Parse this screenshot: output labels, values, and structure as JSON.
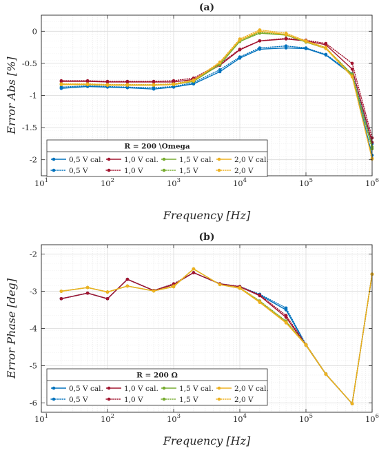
{
  "chart_data": [
    {
      "type": "line",
      "title": "(a)",
      "xlabel": "Frequency [Hz]",
      "ylabel": "Error Abs [%]",
      "xscale": "log",
      "xlim": [
        10,
        1000000
      ],
      "ylim": [
        -2.25,
        0.25
      ],
      "x_ticks": [
        10,
        100,
        1000,
        10000,
        100000,
        1000000
      ],
      "x_tick_labels": [
        [
          "10",
          "1"
        ],
        [
          "10",
          "2"
        ],
        [
          "10",
          "3"
        ],
        [
          "10",
          "4"
        ],
        [
          "10",
          "5"
        ],
        [
          "10",
          "6"
        ]
      ],
      "y_ticks": [
        0,
        -0.5,
        -1,
        -1.5,
        -2
      ],
      "y_tick_labels": [
        "0",
        "-0.5",
        "-1",
        "-1.5",
        "-2"
      ],
      "grid": true,
      "legend": {
        "title": "R = 200 \\Omega",
        "placement": "bottom-left",
        "columns": 4
      },
      "x": [
        20,
        50,
        100,
        200,
        500,
        1000,
        2000,
        5000,
        10000,
        20000,
        50000,
        100000,
        200000,
        500000,
        1000000
      ],
      "series": [
        {
          "name": "0,5 V cal.",
          "color": "#0072BD",
          "style": "solid",
          "values": [
            -0.89,
            -0.86,
            -0.87,
            -0.88,
            -0.9,
            -0.87,
            -0.82,
            -0.63,
            -0.42,
            -0.28,
            -0.26,
            -0.27,
            -0.37,
            -0.68,
            -1.93
          ]
        },
        {
          "name": "1,0 V cal.",
          "color": "#A2142F",
          "style": "solid",
          "values": [
            -0.78,
            -0.78,
            -0.79,
            -0.79,
            -0.79,
            -0.79,
            -0.75,
            -0.53,
            -0.29,
            -0.15,
            -0.12,
            -0.15,
            -0.21,
            -0.59,
            -1.73
          ]
        },
        {
          "name": "1,5 V cal.",
          "color": "#77AC30",
          "style": "solid",
          "values": [
            -0.83,
            -0.83,
            -0.84,
            -0.84,
            -0.84,
            -0.83,
            -0.78,
            -0.52,
            -0.16,
            -0.03,
            -0.06,
            -0.17,
            -0.27,
            -0.68,
            -1.8
          ]
        },
        {
          "name": "2,0 V cal.",
          "color": "#EDB120",
          "style": "solid",
          "values": [
            -0.83,
            -0.83,
            -0.84,
            -0.84,
            -0.84,
            -0.83,
            -0.77,
            -0.49,
            -0.14,
            0.0,
            -0.05,
            -0.16,
            -0.27,
            -0.71,
            -1.98
          ]
        },
        {
          "name": "0,5 V",
          "color": "#0072BD",
          "style": "dotted",
          "values": [
            -0.87,
            -0.85,
            -0.86,
            -0.87,
            -0.88,
            -0.86,
            -0.8,
            -0.6,
            -0.4,
            -0.26,
            -0.23,
            -0.26,
            -0.36,
            -0.66,
            -1.75
          ]
        },
        {
          "name": "1,0 V",
          "color": "#A2142F",
          "style": "dotted",
          "values": [
            -0.77,
            -0.77,
            -0.78,
            -0.78,
            -0.78,
            -0.77,
            -0.73,
            -0.51,
            -0.28,
            -0.15,
            -0.11,
            -0.14,
            -0.19,
            -0.5,
            -1.66
          ]
        },
        {
          "name": "1,5 V",
          "color": "#77AC30",
          "style": "dotted",
          "values": [
            -0.82,
            -0.82,
            -0.83,
            -0.83,
            -0.83,
            -0.82,
            -0.76,
            -0.5,
            -0.14,
            -0.02,
            -0.05,
            -0.16,
            -0.26,
            -0.67,
            -1.83
          ]
        },
        {
          "name": "2,0 V",
          "color": "#EDB120",
          "style": "dotted",
          "values": [
            -0.82,
            -0.82,
            -0.83,
            -0.83,
            -0.83,
            -0.82,
            -0.76,
            -0.48,
            -0.12,
            0.02,
            -0.03,
            -0.15,
            -0.25,
            -0.7,
            -1.99
          ]
        }
      ]
    },
    {
      "type": "line",
      "title": "(b)",
      "xlabel": "Frequency [Hz]",
      "ylabel": "Error Phase [deg]",
      "xscale": "log",
      "xlim": [
        10,
        1000000
      ],
      "ylim": [
        -6.25,
        -1.75
      ],
      "x_ticks": [
        10,
        100,
        1000,
        10000,
        100000,
        1000000
      ],
      "x_tick_labels": [
        [
          "10",
          "1"
        ],
        [
          "10",
          "2"
        ],
        [
          "10",
          "3"
        ],
        [
          "10",
          "4"
        ],
        [
          "10",
          "5"
        ],
        [
          "10",
          "6"
        ]
      ],
      "y_ticks": [
        -2,
        -3,
        -4,
        -5,
        -6
      ],
      "y_tick_labels": [
        "-2",
        "-3",
        "-4",
        "-5",
        "-6"
      ],
      "grid": true,
      "legend": {
        "title": "R = 200 Ω",
        "placement": "bottom-left",
        "columns": 4
      },
      "x": [
        20,
        50,
        100,
        200,
        500,
        1000,
        2000,
        5000,
        10000,
        20000,
        50000,
        100000,
        200000,
        500000,
        1000000
      ],
      "series": [
        {
          "name": "0,5 V cal.",
          "color": "#0072BD",
          "style": "solid",
          "values": [
            -3.2,
            -3.05,
            -3.2,
            -2.68,
            -2.98,
            -2.82,
            -2.5,
            -2.8,
            -2.88,
            -3.1,
            -3.5,
            -4.45,
            -5.23,
            -6.02,
            -2.54
          ]
        },
        {
          "name": "1,0 V cal.",
          "color": "#A2142F",
          "style": "solid",
          "values": [
            -3.2,
            -3.05,
            -3.2,
            -2.68,
            -2.98,
            -2.82,
            -2.5,
            -2.8,
            -2.88,
            -3.12,
            -3.7,
            -4.45,
            -5.23,
            -6.02,
            -2.54
          ]
        },
        {
          "name": "1,5 V cal.",
          "color": "#77AC30",
          "style": "solid",
          "values": [
            -3.0,
            -2.9,
            -3.02,
            -2.86,
            -2.99,
            -2.88,
            -2.4,
            -2.82,
            -2.92,
            -3.28,
            -3.82,
            -4.45,
            -5.23,
            -6.02,
            -2.54
          ]
        },
        {
          "name": "2,0 V cal.",
          "color": "#EDB120",
          "style": "solid",
          "values": [
            -3.0,
            -2.9,
            -3.02,
            -2.86,
            -2.99,
            -2.88,
            -2.4,
            -2.82,
            -2.92,
            -3.3,
            -3.85,
            -4.45,
            -5.23,
            -6.02,
            -2.54
          ]
        },
        {
          "name": "0,5 V",
          "color": "#0072BD",
          "style": "dotted",
          "values": [
            -3.2,
            -3.05,
            -3.2,
            -2.68,
            -2.98,
            -2.8,
            -2.5,
            -2.8,
            -2.87,
            -3.08,
            -3.45,
            -4.43,
            -5.22,
            -6.02,
            -2.54
          ]
        },
        {
          "name": "1,0 V",
          "color": "#A2142F",
          "style": "dotted",
          "values": [
            -3.2,
            -3.05,
            -3.2,
            -2.68,
            -2.98,
            -2.8,
            -2.5,
            -2.8,
            -2.87,
            -3.1,
            -3.65,
            -4.43,
            -5.22,
            -6.02,
            -2.54
          ]
        },
        {
          "name": "1,5 V",
          "color": "#77AC30",
          "style": "dotted",
          "values": [
            -3.0,
            -2.9,
            -3.02,
            -2.86,
            -2.99,
            -2.86,
            -2.4,
            -2.82,
            -2.9,
            -3.26,
            -3.8,
            -4.43,
            -5.22,
            -6.02,
            -2.54
          ]
        },
        {
          "name": "2,0 V",
          "color": "#EDB120",
          "style": "dotted",
          "values": [
            -3.0,
            -2.9,
            -3.02,
            -2.86,
            -2.99,
            -2.86,
            -2.4,
            -2.82,
            -2.9,
            -3.28,
            -3.83,
            -4.43,
            -5.22,
            -6.02,
            -2.54
          ]
        }
      ]
    }
  ]
}
